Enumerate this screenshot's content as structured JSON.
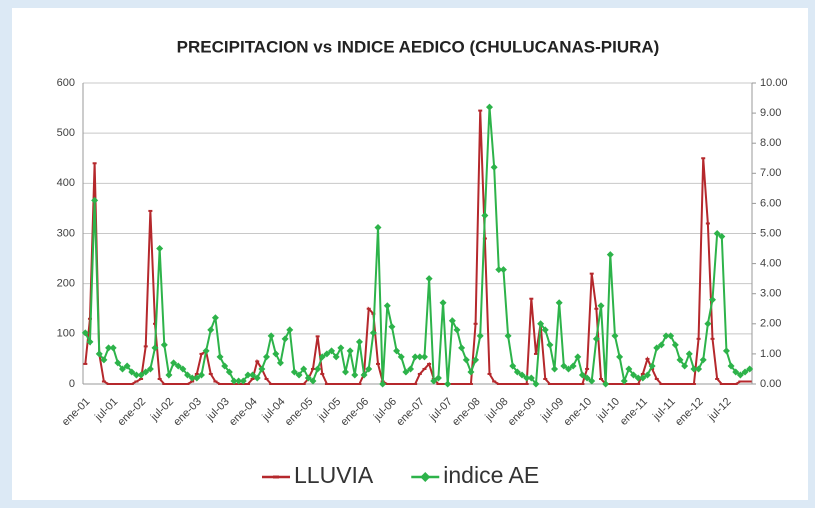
{
  "chart_data": {
    "type": "line",
    "title": "PRECIPITACION vs INDICE AEDICO (CHULUCANAS-PIURA)",
    "categories": [
      "ene-01",
      null,
      null,
      null,
      null,
      null,
      "jul-01",
      null,
      null,
      null,
      null,
      null,
      "ene-02",
      null,
      null,
      null,
      null,
      null,
      "jul-02",
      null,
      null,
      null,
      null,
      null,
      "ene-03",
      null,
      null,
      null,
      null,
      null,
      "jul-03",
      null,
      null,
      null,
      null,
      null,
      "ene-04",
      null,
      null,
      null,
      null,
      null,
      "jul-04",
      null,
      null,
      null,
      null,
      null,
      "ene-05",
      null,
      null,
      null,
      null,
      null,
      "jul-05",
      null,
      null,
      null,
      null,
      null,
      "ene-06",
      null,
      null,
      null,
      null,
      null,
      "jul-06",
      null,
      null,
      null,
      null,
      null,
      "ene-07",
      null,
      null,
      null,
      null,
      null,
      "jul-07",
      null,
      null,
      null,
      null,
      null,
      "ene-08",
      null,
      null,
      null,
      null,
      null,
      "jul-08",
      null,
      null,
      null,
      null,
      null,
      "ene-09",
      null,
      null,
      null,
      null,
      null,
      "jul-09",
      null,
      null,
      null,
      null,
      null,
      "ene-10",
      null,
      null,
      null,
      null,
      null,
      "jul-10",
      null,
      null,
      null,
      null,
      null,
      "ene-11",
      null,
      null,
      null,
      null,
      null,
      "jul-11",
      null,
      null,
      null,
      null,
      null,
      "ene-12",
      null,
      null,
      null,
      null,
      null,
      "jul-12",
      null,
      null,
      null,
      null,
      null
    ],
    "series": [
      {
        "name": "LLUVIA",
        "color": "#b5282c",
        "values": [
          40,
          130,
          440,
          60,
          5,
          0,
          0,
          0,
          0,
          0,
          0,
          5,
          10,
          75,
          345,
          120,
          10,
          0,
          0,
          0,
          0,
          0,
          0,
          5,
          20,
          60,
          65,
          20,
          5,
          0,
          0,
          0,
          0,
          0,
          0,
          0,
          10,
          45,
          30,
          10,
          0,
          0,
          0,
          0,
          0,
          0,
          0,
          0,
          10,
          30,
          95,
          20,
          0,
          0,
          0,
          0,
          0,
          0,
          0,
          0,
          20,
          150,
          140,
          40,
          5,
          0,
          0,
          0,
          0,
          0,
          0,
          0,
          20,
          30,
          40,
          10,
          0,
          0,
          0,
          0,
          0,
          0,
          0,
          0,
          120,
          545,
          290,
          20,
          5,
          0,
          0,
          0,
          0,
          0,
          0,
          0,
          170,
          60,
          120,
          10,
          0,
          0,
          0,
          0,
          0,
          0,
          0,
          0,
          30,
          220,
          150,
          10,
          0,
          0,
          0,
          0,
          0,
          0,
          0,
          0,
          20,
          50,
          30,
          10,
          0,
          0,
          0,
          0,
          0,
          0,
          0,
          0,
          90,
          450,
          320,
          90,
          10,
          0,
          0,
          0,
          0,
          5,
          5,
          5
        ]
      },
      {
        "name": "indice AE",
        "color": "#2db34a",
        "axis": "y2",
        "values": [
          1.7,
          1.4,
          6.1,
          1.0,
          0.8,
          1.2,
          1.2,
          0.7,
          0.5,
          0.6,
          0.4,
          0.3,
          0.3,
          0.4,
          0.5,
          1.2,
          4.5,
          1.3,
          0.3,
          0.7,
          0.6,
          0.5,
          0.3,
          0.2,
          0.2,
          0.3,
          1.1,
          1.8,
          2.2,
          0.9,
          0.6,
          0.4,
          0.1,
          0.1,
          0.1,
          0.3,
          0.3,
          0.2,
          0.5,
          0.9,
          1.6,
          1.0,
          0.7,
          1.5,
          1.8,
          0.4,
          0.3,
          0.5,
          0.2,
          0.1,
          0.5,
          0.9,
          1.0,
          1.1,
          0.9,
          1.2,
          0.4,
          1.1,
          0.3,
          1.4,
          0.3,
          0.5,
          1.7,
          5.2,
          0.0,
          2.6,
          1.9,
          1.1,
          0.9,
          0.4,
          0.5,
          0.9,
          0.9,
          0.9,
          3.5,
          0.1,
          0.2,
          2.7,
          0.0,
          2.1,
          1.8,
          1.2,
          0.8,
          0.4,
          0.8,
          1.6,
          5.6,
          9.2,
          7.2,
          3.8,
          3.8,
          1.6,
          0.6,
          0.4,
          0.3,
          0.2,
          0.2,
          0.0,
          2.0,
          1.8,
          1.3,
          0.5,
          2.7,
          0.6,
          0.5,
          0.6,
          0.9,
          0.3,
          0.2,
          0.1,
          1.5,
          2.6,
          0.0,
          4.3,
          1.6,
          0.9,
          0.1,
          0.5,
          0.3,
          0.2,
          0.2,
          0.3,
          0.6,
          1.2,
          1.3,
          1.6,
          1.6,
          1.3,
          0.8,
          0.6,
          1.0,
          0.5,
          0.5,
          0.8,
          2.0,
          2.8,
          5.0,
          4.9,
          1.1,
          0.6,
          0.4,
          0.3,
          0.4,
          0.5
        ]
      }
    ],
    "ylim": [
      0,
      600
    ],
    "yticks": [
      0,
      100,
      200,
      300,
      400,
      500,
      600
    ],
    "y2lim": [
      0,
      10
    ],
    "y2ticks": [
      {
        "value": 0,
        "label": "0.00"
      },
      {
        "value": 1,
        "label": "1.00"
      },
      {
        "value": 2,
        "label": "2.00"
      },
      {
        "value": 3,
        "label": "3.00"
      },
      {
        "value": 4,
        "label": "4.00"
      },
      {
        "value": 5,
        "label": "5.00"
      },
      {
        "value": 6,
        "label": "6.00"
      },
      {
        "value": 7,
        "label": "7.00"
      },
      {
        "value": 8,
        "label": "8.00"
      },
      {
        "value": 9,
        "label": "9.00"
      },
      {
        "value": 10,
        "label": "10.00"
      }
    ],
    "grid": true,
    "legend": "bottom"
  }
}
